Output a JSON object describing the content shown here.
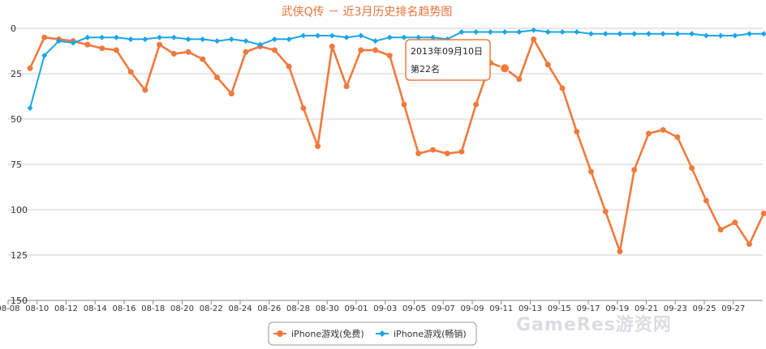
{
  "chart_data": {
    "type": "line",
    "title": "武侠Q传 － 近3月历史排名趋势图",
    "y_axis": {
      "reversed": true,
      "min": 0,
      "max": 150,
      "ticks": [
        0,
        25,
        50,
        75,
        100,
        125,
        150
      ]
    },
    "x_tick_labels": [
      "08-08",
      "08-10",
      "08-12",
      "08-14",
      "08-16",
      "08-18",
      "08-20",
      "08-22",
      "08-24",
      "08-26",
      "08-28",
      "08-30",
      "09-01",
      "09-03",
      "09-05",
      "09-07",
      "09-09",
      "09-11",
      "09-13",
      "09-15",
      "09-17",
      "09-19",
      "09-21",
      "09-23",
      "09-25",
      "09-27"
    ],
    "series": [
      {
        "name": "iPhone游戏(免费)",
        "color": "#f07a3e",
        "marker": "circle",
        "values": [
          22,
          5,
          6,
          7,
          9,
          11,
          12,
          24,
          34,
          9,
          14,
          13,
          17,
          27,
          36,
          13,
          10,
          12,
          21,
          44,
          65,
          10,
          32,
          12,
          12,
          15,
          42,
          69,
          67,
          69,
          68,
          42,
          19,
          22,
          28,
          6,
          20,
          33,
          57,
          79,
          101,
          123,
          78,
          58,
          56,
          60,
          77,
          95,
          111,
          107,
          119,
          102
        ]
      },
      {
        "name": "iPhone游戏(畅销)",
        "color": "#1aa5e8",
        "marker": "diamond",
        "values": [
          44,
          15,
          7,
          8,
          5,
          5,
          5,
          6,
          6,
          5,
          5,
          6,
          6,
          7,
          6,
          7,
          9,
          6,
          6,
          4,
          4,
          4,
          5,
          4,
          7,
          5,
          5,
          5,
          5,
          6,
          2,
          2,
          2,
          2,
          2,
          1,
          2,
          2,
          2,
          3,
          3,
          3,
          3,
          3,
          3,
          3,
          3,
          4,
          4,
          4,
          3,
          3
        ]
      }
    ],
    "tooltip": {
      "date": "2013年09月10日",
      "rank": "第22名",
      "point_index": 33
    },
    "legend": {
      "placement": "bottom-center"
    },
    "grid": true
  },
  "watermark": "GameRes游资网"
}
